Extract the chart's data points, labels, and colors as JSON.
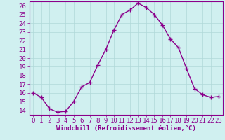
{
  "x": [
    0,
    1,
    2,
    3,
    4,
    5,
    6,
    7,
    8,
    9,
    10,
    11,
    12,
    13,
    14,
    15,
    16,
    17,
    18,
    19,
    20,
    21,
    22,
    23
  ],
  "y": [
    16,
    15.5,
    14.2,
    13.8,
    13.9,
    15,
    16.7,
    17.2,
    19.2,
    21,
    23.2,
    25,
    25.5,
    26.3,
    25.8,
    25,
    23.8,
    22.2,
    21.2,
    18.8,
    16.5,
    15.8,
    15.5,
    15.6
  ],
  "line_color": "#8b008b",
  "marker_color": "#8b008b",
  "bg_color": "#d0f0f0",
  "grid_color": "#b0d8d8",
  "axis_color": "#8b008b",
  "tick_color": "#8b008b",
  "xlabel": "Windchill (Refroidissement éolien,°C)",
  "ylim": [
    13.5,
    26.5
  ],
  "xlim": [
    -0.5,
    23.5
  ],
  "yticks": [
    14,
    15,
    16,
    17,
    18,
    19,
    20,
    21,
    22,
    23,
    24,
    25,
    26
  ],
  "xticks": [
    0,
    1,
    2,
    3,
    4,
    5,
    6,
    7,
    8,
    9,
    10,
    11,
    12,
    13,
    14,
    15,
    16,
    17,
    18,
    19,
    20,
    21,
    22,
    23
  ],
  "font_family": "monospace",
  "fontsize": 6.5
}
